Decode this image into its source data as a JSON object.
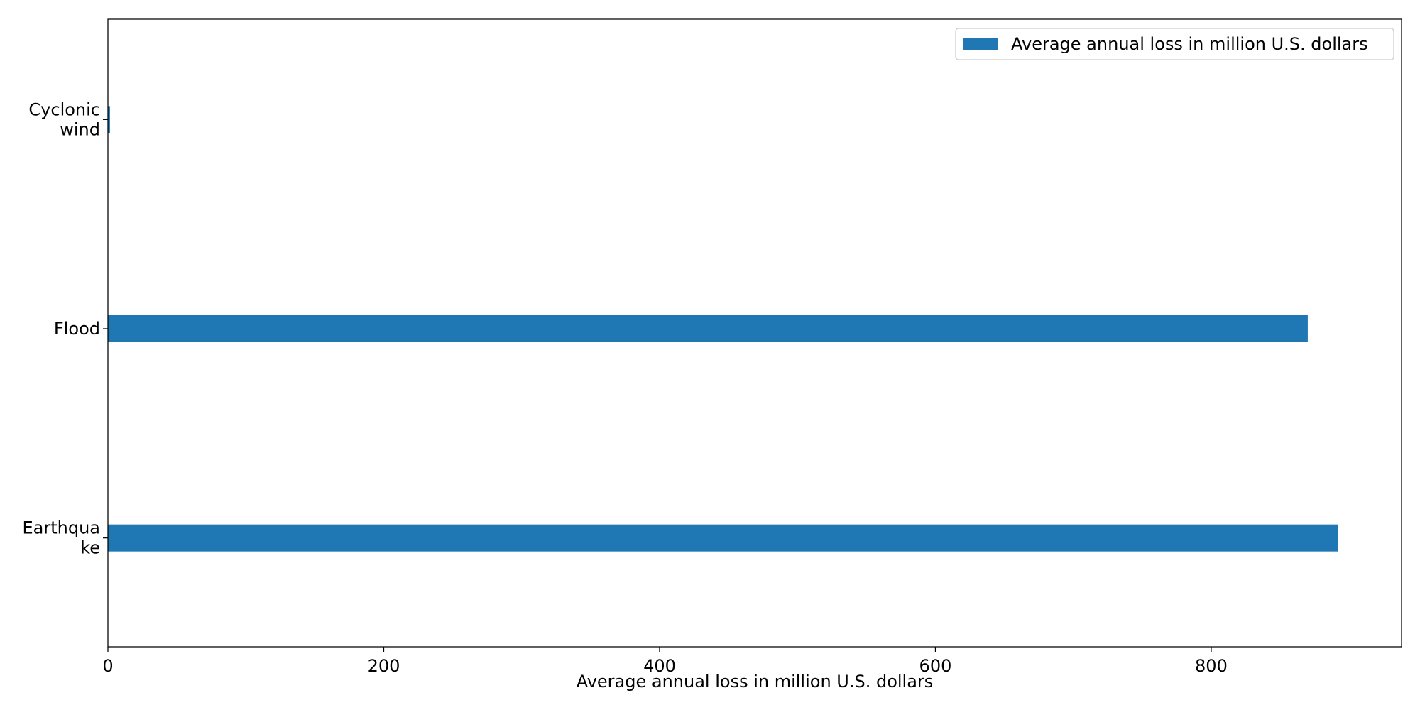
{
  "chart_data": {
    "type": "bar",
    "orientation": "horizontal",
    "categories": [
      "Cyclonic\nwind",
      "Flood",
      "Earthqua\nke"
    ],
    "series": [
      {
        "name": "Average annual loss in million U.S. dollars",
        "values": [
          1.5,
          870,
          892
        ]
      }
    ],
    "xlabel": "Average annual loss in million U.S. dollars",
    "ylabel": "",
    "xlim": [
      0,
      938
    ],
    "xticks": [
      0,
      200,
      400,
      600,
      800
    ],
    "grid": false,
    "legend_position": "top-right",
    "colors": {
      "bar": "#1f77b4",
      "axis": "#000000",
      "background": "#ffffff"
    }
  }
}
